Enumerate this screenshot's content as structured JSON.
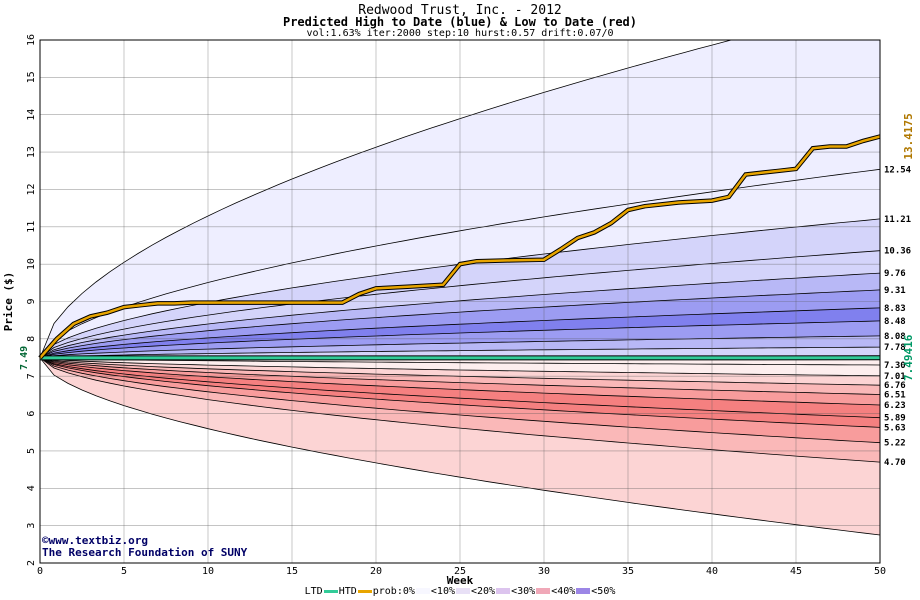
{
  "header": {
    "title": "Redwood Trust, Inc. - 2012",
    "subtitle": "Predicted High to Date (blue) &  Low to Date (red)",
    "params": "vol:1.63% iter:2000 step:10 hurst:0.57 drift:0.07/0"
  },
  "credits": {
    "line1": "©www.textbiz.org",
    "line2": "The Research Foundation of SUNY"
  },
  "legend": {
    "ltd": "LTD",
    "htd": "HTD",
    "prob": "prob:0%",
    "b10": "<10%",
    "b20": "<20%",
    "b30": "<30%",
    "b40": "<40%",
    "b50": "<50%"
  },
  "chart_data": {
    "type": "area",
    "xlabel": "Week",
    "ylabel": "Price ($)",
    "xlim": [
      0,
      50
    ],
    "ylim": [
      2,
      16
    ],
    "x_ticks": [
      0,
      5,
      10,
      15,
      20,
      25,
      30,
      35,
      40,
      45,
      50
    ],
    "y_ticks": [
      2,
      3,
      4,
      5,
      6,
      7,
      8,
      9,
      10,
      11,
      12,
      13,
      14,
      15,
      16
    ],
    "grid": true,
    "start_price": 7.49,
    "start_label": "7.49",
    "htd_final_label": "13.4175",
    "ltd_final_label": "7.49416",
    "colors": {
      "htd": "#e8a500",
      "ltd": "#33cc99",
      "blue_10": "#eeeeff",
      "blue_20": "#d4d4fa",
      "blue_30": "#b8b8f6",
      "blue_40": "#9c9cf2",
      "blue_50": "#8080ee",
      "red_10": "#fdeeee",
      "red_20": "#fcd4d4",
      "red_30": "#fab8b8",
      "red_40": "#f89c9c",
      "red_50": "#f58080"
    },
    "high_quantiles": [
      {
        "label": "",
        "end": 17.0
      },
      {
        "label": "12.54",
        "end": 12.54
      },
      {
        "label": "11.21",
        "end": 11.21
      },
      {
        "label": "10.36",
        "end": 10.36
      },
      {
        "label": "9.76",
        "end": 9.76
      },
      {
        "label": "9.31",
        "end": 9.31
      },
      {
        "label": "8.83",
        "end": 8.83
      },
      {
        "label": "8.48",
        "end": 8.48
      },
      {
        "label": "8.08",
        "end": 8.08
      },
      {
        "label": "7.78",
        "end": 7.78
      }
    ],
    "low_quantiles": [
      {
        "label": "7.30",
        "end": 7.3
      },
      {
        "label": "7.01",
        "end": 7.01
      },
      {
        "label": "6.76",
        "end": 6.76
      },
      {
        "label": "6.51",
        "end": 6.51
      },
      {
        "label": "6.23",
        "end": 6.23
      },
      {
        "label": "5.89",
        "end": 5.89
      },
      {
        "label": "5.63",
        "end": 5.63
      },
      {
        "label": "5.22",
        "end": 5.22
      },
      {
        "label": "4.70",
        "end": 4.7
      },
      {
        "label": "",
        "end": 2.75
      }
    ],
    "htd_series": {
      "x": [
        0,
        1,
        2,
        3,
        4,
        5,
        6,
        7,
        8,
        9,
        10,
        12,
        14,
        16,
        18,
        19,
        20,
        22,
        24,
        25,
        26,
        28,
        30,
        31,
        32,
        33,
        34,
        35,
        36,
        37,
        38,
        40,
        41,
        42,
        43,
        44,
        45,
        46,
        47,
        48,
        49,
        50
      ],
      "y": [
        7.49,
        8.0,
        8.4,
        8.6,
        8.7,
        8.85,
        8.9,
        8.95,
        8.95,
        8.97,
        8.97,
        8.97,
        8.97,
        8.97,
        8.97,
        9.2,
        9.35,
        9.4,
        9.45,
        10.0,
        10.08,
        10.1,
        10.12,
        10.4,
        10.7,
        10.85,
        11.1,
        11.45,
        11.55,
        11.6,
        11.65,
        11.7,
        11.8,
        12.4,
        12.45,
        12.5,
        12.55,
        13.1,
        13.15,
        13.15,
        13.3,
        13.4175
      ]
    },
    "ltd_series": {
      "x": [
        0,
        50
      ],
      "y": [
        7.49,
        7.49416
      ]
    }
  }
}
